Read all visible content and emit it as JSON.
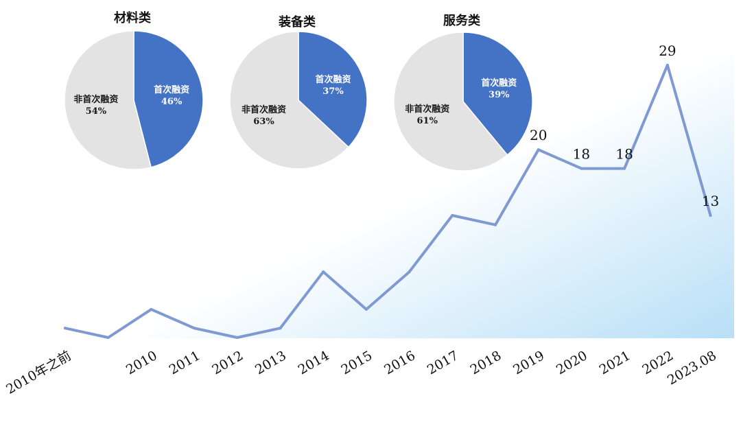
{
  "colors": {
    "line": "#7f9ad2",
    "pie_first": "#4472c4",
    "pie_non_first": "#e3e3e3",
    "pie_stroke": "#ffffff",
    "bg_start": "#ffffff",
    "bg_end": "#b8dff7"
  },
  "chart_data": [
    {
      "type": "line",
      "categories": [
        "2010年之前",
        "",
        "2010",
        "2011",
        "2012",
        "2013",
        "2014",
        "2015",
        "2016",
        "2017",
        "2018",
        "2019",
        "2020",
        "2021",
        "2022",
        "2023.08"
      ],
      "values": [
        1,
        0,
        3,
        1,
        0,
        1,
        7,
        3,
        7,
        13,
        12,
        20,
        18,
        18,
        29,
        13
      ],
      "data_labels": [
        "",
        "",
        "",
        "",
        "",
        "",
        "",
        "",
        "",
        "",
        "",
        "20",
        "18",
        "18",
        "29",
        "13"
      ],
      "ylim": [
        0,
        35
      ],
      "grid": false,
      "legend": "none"
    },
    {
      "type": "pie",
      "title": "材料类",
      "slices": [
        {
          "label": "首次融资",
          "value": 46,
          "pct_text": "46%"
        },
        {
          "label": "非首次融资",
          "value": 54,
          "pct_text": "54%"
        }
      ]
    },
    {
      "type": "pie",
      "title": "装备类",
      "slices": [
        {
          "label": "首次融资",
          "value": 37,
          "pct_text": "37%"
        },
        {
          "label": "非首次融资",
          "value": 63,
          "pct_text": "63%"
        }
      ]
    },
    {
      "type": "pie",
      "title": "服务类",
      "slices": [
        {
          "label": "首次融资",
          "value": 39,
          "pct_text": "39%"
        },
        {
          "label": "非首次融资",
          "value": 61,
          "pct_text": "61%"
        }
      ]
    }
  ]
}
